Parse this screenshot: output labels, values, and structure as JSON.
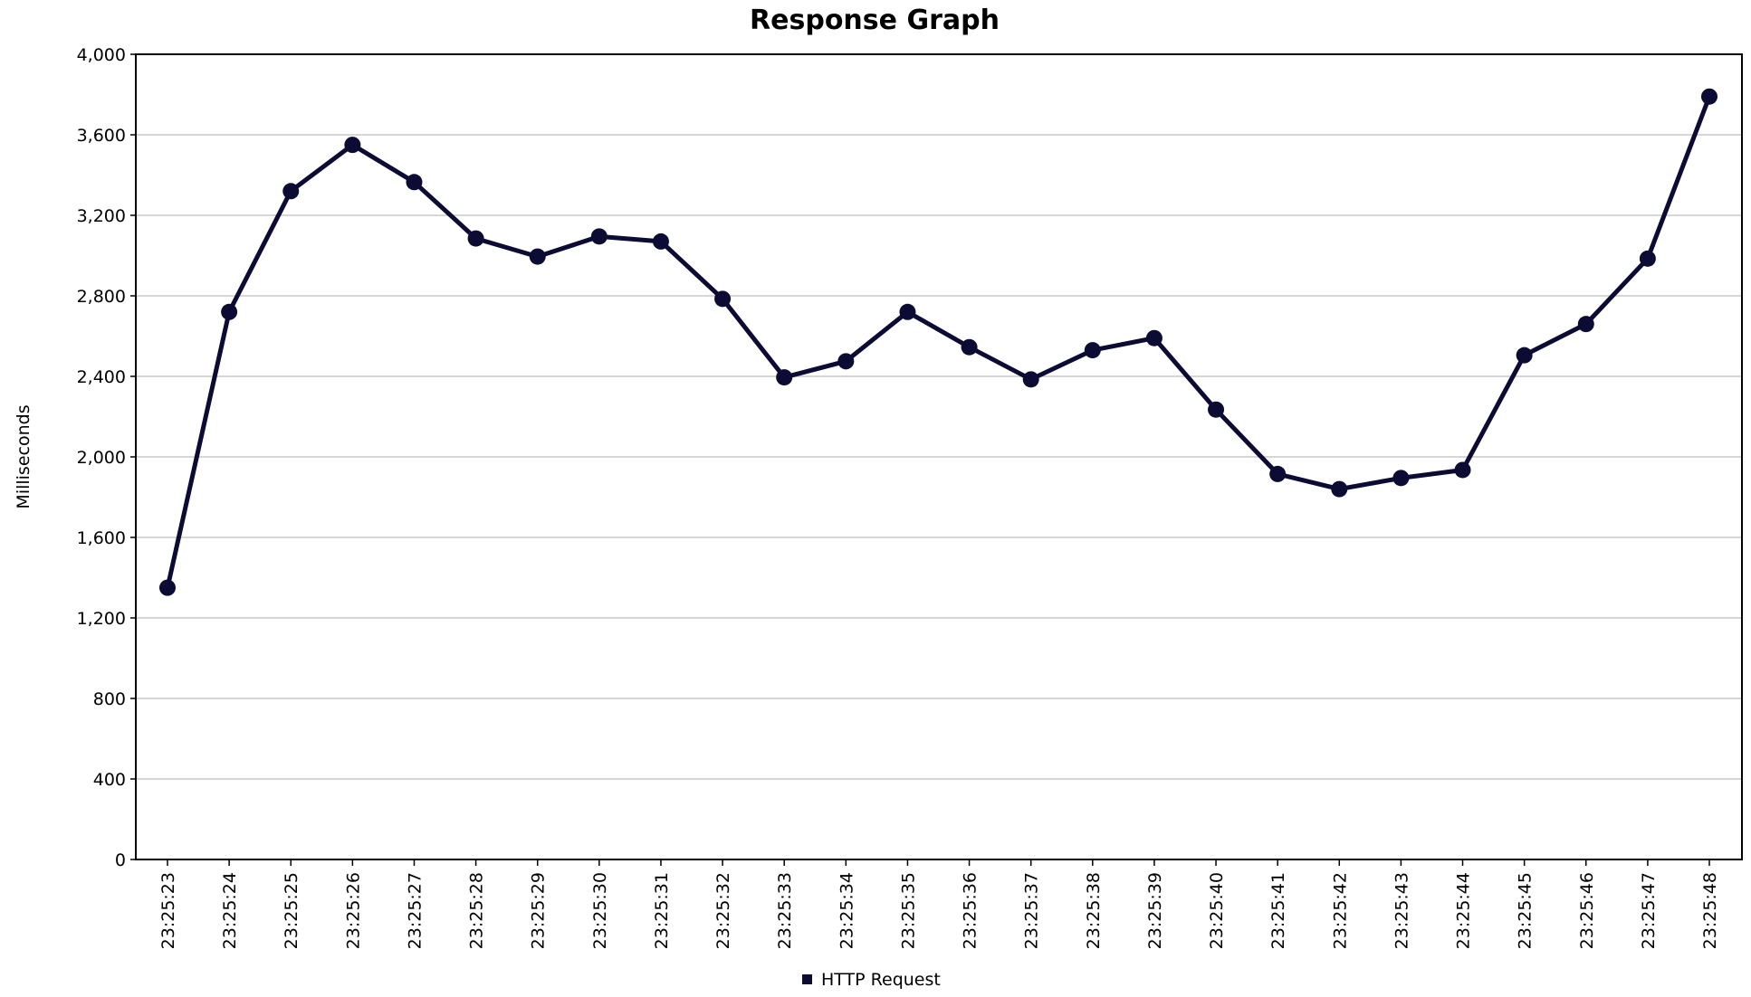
{
  "chart_data": {
    "type": "line",
    "title": "Response Graph",
    "xlabel": "",
    "ylabel": "Milliseconds",
    "ylim": [
      0,
      4000
    ],
    "y_ticks": [
      "0",
      "400",
      "800",
      "1,200",
      "1,600",
      "2,000",
      "2,400",
      "2,800",
      "3,200",
      "3,600",
      "4,000"
    ],
    "y_tick_values": [
      0,
      400,
      800,
      1200,
      1600,
      2000,
      2400,
      2800,
      3200,
      3600,
      4000
    ],
    "grid": "horizontal",
    "legend_position": "bottom-center",
    "categories": [
      "23:25:23",
      "23:25:24",
      "23:25:25",
      "23:25:26",
      "23:25:27",
      "23:25:28",
      "23:25:29",
      "23:25:30",
      "23:25:31",
      "23:25:32",
      "23:25:33",
      "23:25:34",
      "23:25:35",
      "23:25:36",
      "23:25:37",
      "23:25:38",
      "23:25:39",
      "23:25:40",
      "23:25:41",
      "23:25:42",
      "23:25:43",
      "23:25:44",
      "23:25:45",
      "23:25:46",
      "23:25:47",
      "23:25:48"
    ],
    "series": [
      {
        "name": "HTTP Request",
        "color": "#0b0b33",
        "values": [
          1350,
          2720,
          3320,
          3550,
          3365,
          3085,
          2995,
          3095,
          3070,
          2785,
          2395,
          2475,
          2720,
          2545,
          2385,
          2530,
          2590,
          2235,
          1915,
          1840,
          1895,
          1935,
          2505,
          2660,
          2985,
          3790
        ]
      }
    ]
  }
}
